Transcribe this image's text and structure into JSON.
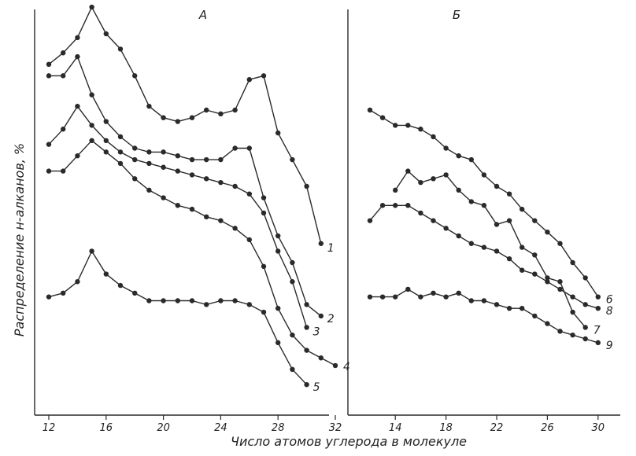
{
  "chart_data": {
    "type": "line",
    "xlabel": "Число атомов углерода в молекуле",
    "ylabel": "Распределение н-алканов, %",
    "panels": [
      {
        "title": "А",
        "xticks": [
          12,
          16,
          20,
          24,
          28,
          32
        ],
        "xlim": [
          11.5,
          32.5
        ],
        "series": [
          {
            "name": "1",
            "x": [
              12,
              13,
              14,
              15,
              16,
              17,
              18,
              19,
              20,
              21,
              22,
              23,
              24,
              25,
              26,
              27,
              28,
              29,
              30,
              31
            ],
            "y": [
              92,
              95,
              99,
              107,
              100,
              96,
              89,
              81,
              78,
              77,
              78,
              80,
              79,
              80,
              88,
              89,
              74,
              67,
              60,
              45
            ]
          },
          {
            "name": "2",
            "x": [
              12,
              13,
              14,
              15,
              16,
              17,
              18,
              19,
              20,
              21,
              22,
              23,
              24,
              25,
              26,
              27,
              28,
              29,
              30,
              31
            ],
            "y": [
              89,
              89,
              94,
              84,
              77,
              73,
              70,
              69,
              69,
              68,
              67,
              67,
              67,
              70,
              70,
              57,
              47,
              40,
              29,
              26
            ]
          },
          {
            "name": "3",
            "x": [
              12,
              13,
              14,
              15,
              16,
              17,
              18,
              19,
              20,
              21,
              22,
              23,
              24,
              25,
              26,
              27,
              28,
              29,
              30
            ],
            "y": [
              71,
              75,
              81,
              76,
              72,
              69,
              67,
              66,
              65,
              64,
              63,
              62,
              61,
              60,
              58,
              53,
              43,
              35,
              23
            ]
          },
          {
            "name": "4",
            "x": [
              12,
              13,
              14,
              15,
              16,
              17,
              18,
              19,
              20,
              21,
              22,
              23,
              24,
              25,
              26,
              27,
              28,
              29,
              30,
              31,
              32
            ],
            "y": [
              64,
              64,
              68,
              72,
              69,
              66,
              62,
              59,
              57,
              55,
              54,
              52,
              51,
              49,
              46,
              39,
              28,
              21,
              17,
              15,
              13
            ]
          },
          {
            "name": "5",
            "x": [
              12,
              13,
              14,
              15,
              16,
              17,
              18,
              19,
              20,
              21,
              22,
              23,
              24,
              25,
              26,
              27,
              28,
              29,
              30
            ],
            "y": [
              31,
              32,
              35,
              43,
              37,
              34,
              32,
              30,
              30,
              30,
              30,
              29,
              30,
              30,
              29,
              27,
              19,
              12,
              8
            ]
          }
        ]
      },
      {
        "title": "Б",
        "xticks": [
          14,
          18,
          22,
          26,
          30
        ],
        "xlim": [
          11.5,
          30.5
        ],
        "series": [
          {
            "name": "6",
            "x": [
              12,
              13,
              14,
              15,
              16,
              17,
              18,
              19,
              20,
              21,
              22,
              23,
              24,
              25,
              26,
              27,
              28,
              29,
              30
            ],
            "y": [
              80,
              78,
              76,
              76,
              75,
              73,
              70,
              68,
              67,
              63,
              60,
              58,
              54,
              51,
              48,
              45,
              40,
              36,
              31
            ]
          },
          {
            "name": "7",
            "x": [
              14,
              15,
              16,
              17,
              18,
              19,
              20,
              21,
              22,
              23,
              24,
              25,
              26,
              27,
              28,
              29
            ],
            "y": [
              59,
              64,
              61,
              62,
              63,
              59,
              56,
              55,
              50,
              51,
              44,
              42,
              36,
              35,
              27,
              23
            ]
          },
          {
            "name": "8",
            "x": [
              12,
              13,
              14,
              15,
              16,
              17,
              18,
              19,
              20,
              21,
              22,
              23,
              24,
              25,
              26,
              27,
              28,
              29,
              30
            ],
            "y": [
              51,
              55,
              55,
              55,
              53,
              51,
              49,
              47,
              45,
              44,
              43,
              41,
              38,
              37,
              35,
              33,
              31,
              29,
              28
            ]
          },
          {
            "name": "9",
            "x": [
              12,
              13,
              14,
              15,
              16,
              17,
              18,
              19,
              20,
              21,
              22,
              23,
              24,
              25,
              26,
              27,
              28,
              29,
              30
            ],
            "y": [
              31,
              31,
              31,
              33,
              31,
              32,
              31,
              32,
              30,
              30,
              29,
              28,
              28,
              26,
              24,
              22,
              21,
              20,
              19
            ]
          }
        ]
      }
    ]
  }
}
